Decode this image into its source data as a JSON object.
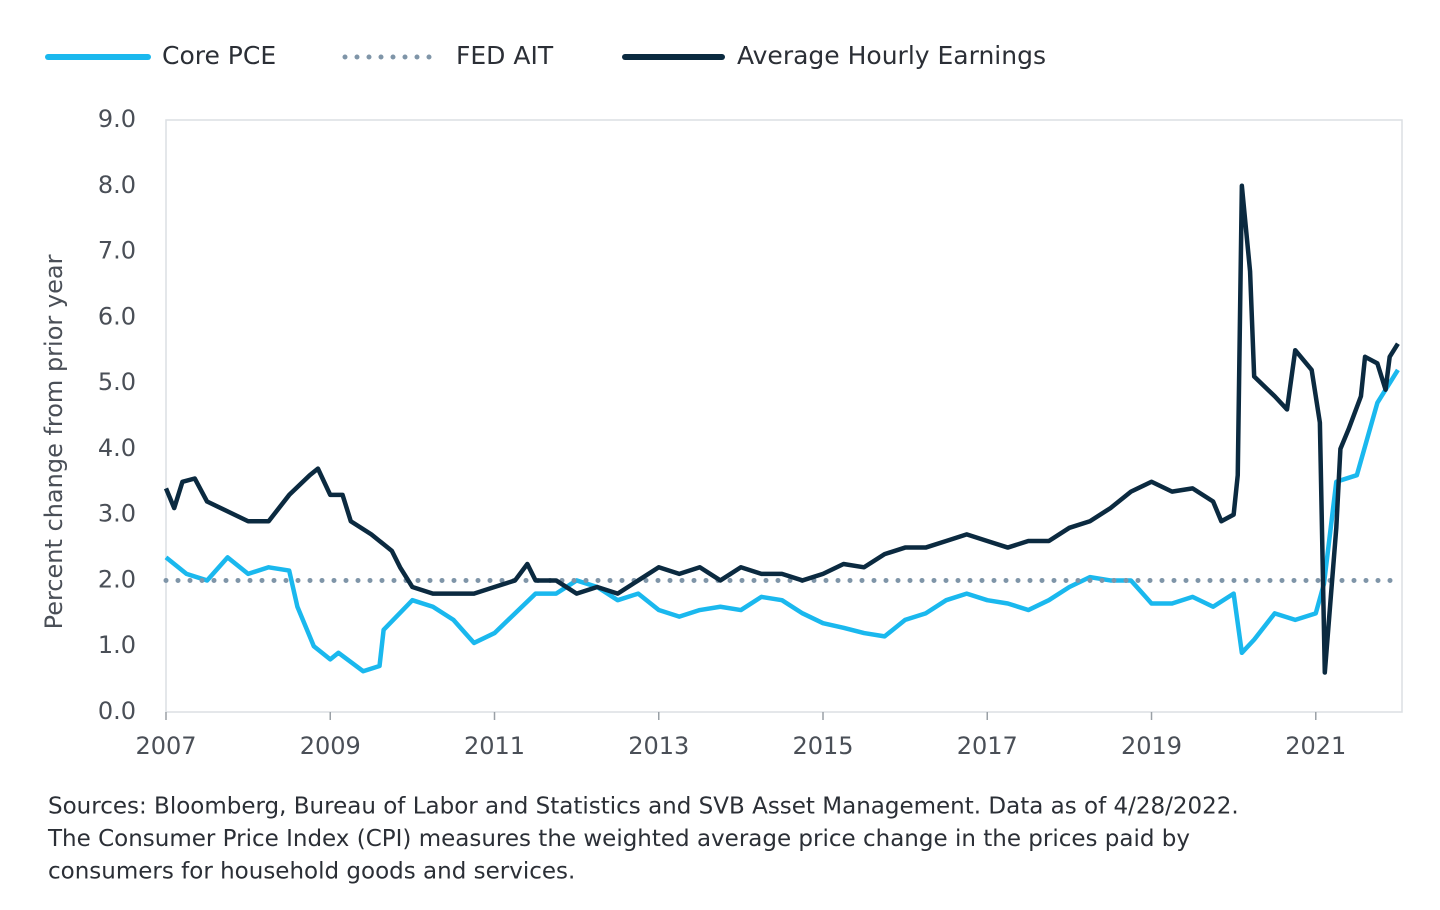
{
  "chart_data": {
    "type": "line",
    "ylabel": "Percent change from prior year",
    "xlim": [
      2007,
      2022.05
    ],
    "xticks": [
      2007,
      2009,
      2011,
      2013,
      2015,
      2017,
      2019,
      2021
    ],
    "ylim": [
      0,
      9
    ],
    "yticks": [
      {
        "value": 0,
        "label": "0.0"
      },
      {
        "value": 1,
        "label": "1.0"
      },
      {
        "value": 2,
        "label": "2.0"
      },
      {
        "value": 3,
        "label": "3.0"
      },
      {
        "value": 4,
        "label": "4.0"
      },
      {
        "value": 5,
        "label": "5.0"
      },
      {
        "value": 6,
        "label": "6.0"
      },
      {
        "value": 7,
        "label": "7.0"
      },
      {
        "value": 8,
        "label": "8.0"
      },
      {
        "value": 9,
        "label": "9.0"
      }
    ],
    "series": [
      {
        "name": "Core PCE",
        "color": "#1ab8ee",
        "style": "solid",
        "x": [
          2007.0,
          2007.25,
          2007.5,
          2007.75,
          2008.0,
          2008.25,
          2008.5,
          2008.6,
          2008.8,
          2009.0,
          2009.1,
          2009.4,
          2009.6,
          2009.65,
          2010.0,
          2010.25,
          2010.5,
          2010.75,
          2011.0,
          2011.25,
          2011.5,
          2011.75,
          2012.0,
          2012.25,
          2012.5,
          2012.75,
          2013.0,
          2013.25,
          2013.5,
          2013.75,
          2014.0,
          2014.25,
          2014.5,
          2014.75,
          2015.0,
          2015.25,
          2015.5,
          2015.75,
          2016.0,
          2016.25,
          2016.5,
          2016.75,
          2017.0,
          2017.25,
          2017.5,
          2017.75,
          2018.0,
          2018.25,
          2018.5,
          2018.75,
          2019.0,
          2019.25,
          2019.5,
          2019.75,
          2020.0,
          2020.1,
          2020.25,
          2020.5,
          2020.75,
          2021.0,
          2021.1,
          2021.25,
          2021.5,
          2021.75,
          2022.0
        ],
        "values": [
          2.35,
          2.1,
          2.0,
          2.35,
          2.1,
          2.2,
          2.15,
          1.6,
          1.0,
          0.8,
          0.9,
          0.62,
          0.7,
          1.25,
          1.7,
          1.6,
          1.4,
          1.05,
          1.2,
          1.5,
          1.8,
          1.8,
          2.0,
          1.9,
          1.7,
          1.8,
          1.55,
          1.45,
          1.55,
          1.6,
          1.55,
          1.75,
          1.7,
          1.5,
          1.35,
          1.28,
          1.2,
          1.15,
          1.4,
          1.5,
          1.7,
          1.8,
          1.7,
          1.65,
          1.55,
          1.7,
          1.9,
          2.05,
          2.0,
          2.0,
          1.65,
          1.65,
          1.75,
          1.6,
          1.8,
          0.9,
          1.1,
          1.5,
          1.4,
          1.5,
          1.95,
          3.5,
          3.6,
          4.7,
          5.2
        ]
      },
      {
        "name": "FED AIT",
        "color": "#7f95a8",
        "style": "dotted",
        "x": [
          2007.0,
          2022.0
        ],
        "values": [
          2,
          2
        ]
      },
      {
        "name": "Average Hourly Earnings",
        "color": "#0b2a40",
        "style": "solid",
        "x": [
          2007.0,
          2007.1,
          2007.2,
          2007.35,
          2007.5,
          2007.75,
          2008.0,
          2008.25,
          2008.5,
          2008.75,
          2008.85,
          2009.0,
          2009.15,
          2009.25,
          2009.5,
          2009.75,
          2009.85,
          2010.0,
          2010.25,
          2010.5,
          2010.75,
          2011.0,
          2011.25,
          2011.4,
          2011.5,
          2011.75,
          2012.0,
          2012.25,
          2012.5,
          2012.75,
          2013.0,
          2013.25,
          2013.5,
          2013.75,
          2014.0,
          2014.25,
          2014.5,
          2014.75,
          2015.0,
          2015.25,
          2015.5,
          2015.75,
          2016.0,
          2016.25,
          2016.5,
          2016.75,
          2017.0,
          2017.25,
          2017.5,
          2017.75,
          2018.0,
          2018.25,
          2018.5,
          2018.75,
          2019.0,
          2019.25,
          2019.5,
          2019.75,
          2019.85,
          2020.0,
          2020.05,
          2020.1,
          2020.2,
          2020.25,
          2020.5,
          2020.65,
          2020.75,
          2020.95,
          2021.05,
          2021.11,
          2021.25,
          2021.3,
          2021.4,
          2021.55,
          2021.6,
          2021.75,
          2021.85,
          2021.9,
          2022.0
        ],
        "values": [
          3.4,
          3.1,
          3.5,
          3.55,
          3.2,
          3.05,
          2.9,
          2.9,
          3.3,
          3.6,
          3.7,
          3.3,
          3.3,
          2.9,
          2.7,
          2.45,
          2.2,
          1.9,
          1.8,
          1.8,
          1.8,
          1.9,
          2.0,
          2.25,
          2.0,
          2.0,
          1.8,
          1.9,
          1.8,
          2.0,
          2.2,
          2.1,
          2.2,
          2.0,
          2.2,
          2.1,
          2.1,
          2.0,
          2.1,
          2.25,
          2.2,
          2.4,
          2.5,
          2.5,
          2.6,
          2.7,
          2.6,
          2.5,
          2.6,
          2.6,
          2.8,
          2.9,
          3.1,
          3.35,
          3.5,
          3.35,
          3.4,
          3.2,
          2.9,
          3.0,
          3.6,
          8.0,
          6.7,
          5.1,
          4.8,
          4.6,
          5.5,
          5.2,
          4.4,
          0.6,
          2.8,
          4.0,
          4.3,
          4.8,
          5.4,
          5.3,
          4.9,
          5.4,
          5.6
        ]
      }
    ],
    "notes": [
      "Sources: Bloomberg, Bureau of Labor and Statistics and SVB Asset Management. Data as of 4/28/2022.",
      "The Consumer Price Index (CPI) measures the weighted average price change in the prices paid by",
      "consumers for household goods and services."
    ]
  }
}
